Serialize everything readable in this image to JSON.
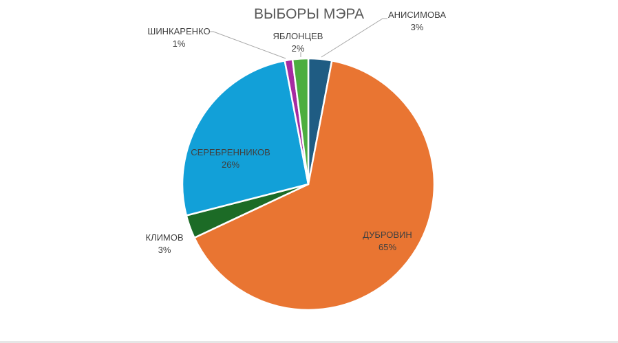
{
  "chart_data": {
    "type": "pie",
    "title": "ВЫБОРЫ МЭРА",
    "slices": [
      {
        "label": "АНИСИМОВА",
        "value": 3,
        "display": "3%",
        "color": "#1f5c83"
      },
      {
        "label": "ДУБРОВИН",
        "value": 65,
        "display": "65%",
        "color": "#e97532"
      },
      {
        "label": "КЛИМОВ",
        "value": 3,
        "display": "3%",
        "color": "#1c6b26"
      },
      {
        "label": "СЕРЕБРЕННИКОВ",
        "value": 26,
        "display": "26%",
        "color": "#12a0d8"
      },
      {
        "label": "ШИНКАРЕНКО",
        "value": 1,
        "display": "1%",
        "color": "#a62ba1"
      },
      {
        "label": "ЯБЛОНЦЕВ",
        "value": 2,
        "display": "2%",
        "color": "#4cae3f"
      }
    ]
  }
}
